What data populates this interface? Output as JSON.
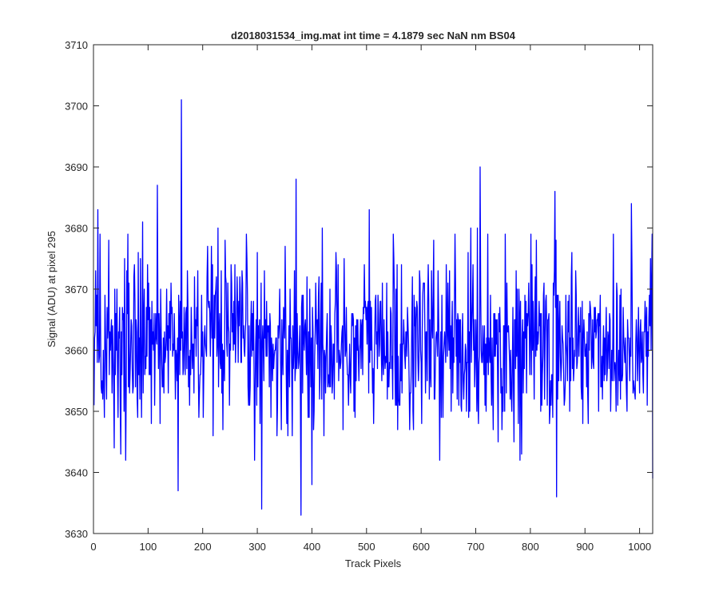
{
  "chart_data": {
    "type": "line",
    "title": "d2018031534_img.mat int time = 4.1879 sec  NaN nm BS04",
    "xlabel": "Track Pixels",
    "ylabel": "Signal (ADU) at pixel 295",
    "xlim": [
      0,
      1024
    ],
    "ylim": [
      3630,
      3710
    ],
    "xticks": [
      0,
      100,
      200,
      300,
      400,
      500,
      600,
      700,
      800,
      900,
      1000
    ],
    "yticks": [
      3630,
      3640,
      3650,
      3660,
      3670,
      3680,
      3690,
      3700,
      3710
    ],
    "grid": false,
    "series": [
      {
        "color": "#0000ff",
        "approx_mean": 3661,
        "approx_noise_std": 7,
        "x_start": 1,
        "x_end": 1024,
        "key_points": [
          {
            "x": 1,
            "y": 3651
          },
          {
            "x": 4,
            "y": 3673
          },
          {
            "x": 8,
            "y": 3683
          },
          {
            "x": 12,
            "y": 3679
          },
          {
            "x": 20,
            "y": 3649
          },
          {
            "x": 28,
            "y": 3678
          },
          {
            "x": 38,
            "y": 3644
          },
          {
            "x": 63,
            "y": 3679
          },
          {
            "x": 90,
            "y": 3681
          },
          {
            "x": 117,
            "y": 3687
          },
          {
            "x": 155,
            "y": 3637
          },
          {
            "x": 161,
            "y": 3701
          },
          {
            "x": 165,
            "y": 3657
          },
          {
            "x": 308,
            "y": 3634
          },
          {
            "x": 371,
            "y": 3688
          },
          {
            "x": 380,
            "y": 3633
          },
          {
            "x": 400,
            "y": 3638
          },
          {
            "x": 505,
            "y": 3683
          },
          {
            "x": 708,
            "y": 3690
          },
          {
            "x": 845,
            "y": 3686
          },
          {
            "x": 848,
            "y": 3636
          },
          {
            "x": 985,
            "y": 3684
          },
          {
            "x": 1020,
            "y": 3675
          },
          {
            "x": 1024,
            "y": 3639
          }
        ]
      }
    ]
  }
}
